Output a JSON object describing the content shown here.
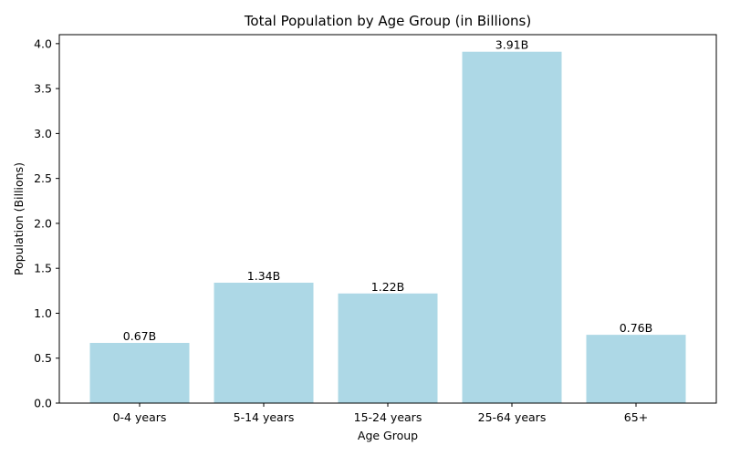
{
  "chart_data": {
    "type": "bar",
    "title": "Total Population by Age Group (in Billions)",
    "xlabel": "Age Group",
    "ylabel": "Population (Billions)",
    "categories": [
      "0-4 years",
      "5-14 years",
      "15-24 years",
      "25-64 years",
      "65+"
    ],
    "values": [
      0.67,
      1.34,
      1.22,
      3.91,
      0.76
    ],
    "data_labels": [
      "0.67B",
      "1.34B",
      "1.22B",
      "3.91B",
      "0.76B"
    ],
    "ylim": [
      0,
      4.1
    ],
    "yticks": [
      "0.0",
      "0.5",
      "1.0",
      "1.5",
      "2.0",
      "2.5",
      "3.0",
      "3.5",
      "4.0"
    ],
    "bar_color": "#add8e6",
    "grid": false
  }
}
